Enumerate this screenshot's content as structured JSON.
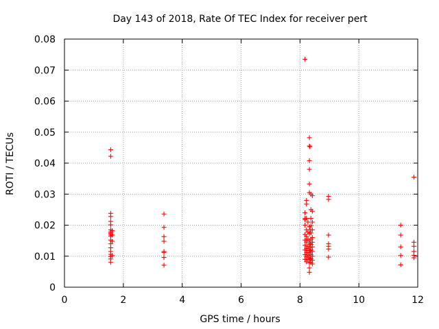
{
  "chart_data": {
    "type": "scatter",
    "title": "Day 143 of 2018, Rate Of TEC Index for receiver pert",
    "xlabel": "GPS time / hours",
    "ylabel": "ROTI / TECUs",
    "xlim": [
      0,
      12
    ],
    "ylim": [
      0,
      0.08
    ],
    "xticks": [
      0,
      2,
      4,
      6,
      8,
      10,
      12
    ],
    "yticks": [
      0,
      0.01,
      0.02,
      0.03,
      0.04,
      0.05,
      0.06,
      0.07,
      0.08
    ],
    "xtick_labels": [
      "0",
      "2",
      "4",
      "6",
      "8",
      "10",
      "12"
    ],
    "ytick_labels": [
      "0",
      "0.01",
      "0.02",
      "0.03",
      "0.04",
      "0.05",
      "0.06",
      "0.07",
      "0.08"
    ],
    "grid": true,
    "marker": "+",
    "color": "#ff0000",
    "series": [
      {
        "name": "ROTI",
        "points": [
          [
            1.57,
            0.0443
          ],
          [
            1.57,
            0.0422
          ],
          [
            1.57,
            0.0238
          ],
          [
            1.57,
            0.0228
          ],
          [
            1.57,
            0.0212
          ],
          [
            1.57,
            0.0201
          ],
          [
            1.57,
            0.0185
          ],
          [
            1.57,
            0.0178
          ],
          [
            1.57,
            0.0174
          ],
          [
            1.57,
            0.017
          ],
          [
            1.57,
            0.0165
          ],
          [
            1.57,
            0.0152
          ],
          [
            1.57,
            0.014
          ],
          [
            1.57,
            0.0127
          ],
          [
            1.57,
            0.0115
          ],
          [
            1.57,
            0.0106
          ],
          [
            1.57,
            0.0099
          ],
          [
            1.57,
            0.0091
          ],
          [
            1.57,
            0.008
          ],
          [
            1.62,
            0.0182
          ],
          [
            1.62,
            0.0168
          ],
          [
            1.62,
            0.0148
          ],
          [
            1.62,
            0.0102
          ],
          [
            3.38,
            0.0236
          ],
          [
            3.38,
            0.0193
          ],
          [
            3.38,
            0.0163
          ],
          [
            3.38,
            0.0148
          ],
          [
            3.38,
            0.0115
          ],
          [
            3.38,
            0.0112
          ],
          [
            3.38,
            0.0096
          ],
          [
            3.38,
            0.0071
          ],
          [
            8.17,
            0.0735
          ],
          [
            8.17,
            0.024
          ],
          [
            8.17,
            0.0222
          ],
          [
            8.17,
            0.0218
          ],
          [
            8.17,
            0.02
          ],
          [
            8.17,
            0.017
          ],
          [
            8.17,
            0.0152
          ],
          [
            8.17,
            0.0135
          ],
          [
            8.17,
            0.012
          ],
          [
            8.17,
            0.0105
          ],
          [
            8.17,
            0.009
          ],
          [
            8.22,
            0.028
          ],
          [
            8.22,
            0.0268
          ],
          [
            8.22,
            0.0222
          ],
          [
            8.22,
            0.0185
          ],
          [
            8.22,
            0.0163
          ],
          [
            8.22,
            0.0145
          ],
          [
            8.22,
            0.0125
          ],
          [
            8.22,
            0.0112
          ],
          [
            8.22,
            0.0098
          ],
          [
            8.22,
            0.0082
          ],
          [
            8.27,
            0.021
          ],
          [
            8.27,
            0.0178
          ],
          [
            8.27,
            0.0155
          ],
          [
            8.27,
            0.0132
          ],
          [
            8.27,
            0.0118
          ],
          [
            8.27,
            0.0103
          ],
          [
            8.27,
            0.0088
          ],
          [
            8.32,
            0.0482
          ],
          [
            8.32,
            0.0455
          ],
          [
            8.32,
            0.0408
          ],
          [
            8.32,
            0.038
          ],
          [
            8.32,
            0.0333
          ],
          [
            8.32,
            0.0305
          ],
          [
            8.32,
            0.0195
          ],
          [
            8.32,
            0.0172
          ],
          [
            8.32,
            0.015
          ],
          [
            8.32,
            0.0128
          ],
          [
            8.32,
            0.011
          ],
          [
            8.32,
            0.0095
          ],
          [
            8.32,
            0.0078
          ],
          [
            8.32,
            0.0062
          ],
          [
            8.32,
            0.0048
          ],
          [
            8.34,
            0.0453
          ],
          [
            8.34,
            0.0185
          ],
          [
            8.34,
            0.014
          ],
          [
            8.34,
            0.0118
          ],
          [
            8.34,
            0.009
          ],
          [
            8.37,
            0.03
          ],
          [
            8.37,
            0.025
          ],
          [
            8.37,
            0.0222
          ],
          [
            8.37,
            0.0198
          ],
          [
            8.37,
            0.0175
          ],
          [
            8.37,
            0.0155
          ],
          [
            8.37,
            0.0138
          ],
          [
            8.37,
            0.012
          ],
          [
            8.37,
            0.0105
          ],
          [
            8.37,
            0.0092
          ],
          [
            8.37,
            0.008
          ],
          [
            8.42,
            0.0295
          ],
          [
            8.42,
            0.0245
          ],
          [
            8.42,
            0.021
          ],
          [
            8.42,
            0.0185
          ],
          [
            8.42,
            0.016
          ],
          [
            8.42,
            0.0145
          ],
          [
            8.42,
            0.013
          ],
          [
            8.42,
            0.0115
          ],
          [
            8.42,
            0.01
          ],
          [
            8.42,
            0.0087
          ],
          [
            8.42,
            0.0075
          ],
          [
            8.97,
            0.0293
          ],
          [
            8.97,
            0.0283
          ],
          [
            8.97,
            0.0168
          ],
          [
            8.97,
            0.014
          ],
          [
            8.97,
            0.0132
          ],
          [
            8.97,
            0.0123
          ],
          [
            8.97,
            0.0097
          ],
          [
            11.42,
            0.02
          ],
          [
            11.42,
            0.0168
          ],
          [
            11.42,
            0.013
          ],
          [
            11.42,
            0.0102
          ],
          [
            11.42,
            0.0072
          ],
          [
            11.87,
            0.0355
          ],
          [
            11.87,
            0.0145
          ],
          [
            11.87,
            0.0132
          ],
          [
            11.87,
            0.0115
          ],
          [
            11.87,
            0.0103
          ],
          [
            11.87,
            0.0095
          ]
        ]
      }
    ]
  }
}
